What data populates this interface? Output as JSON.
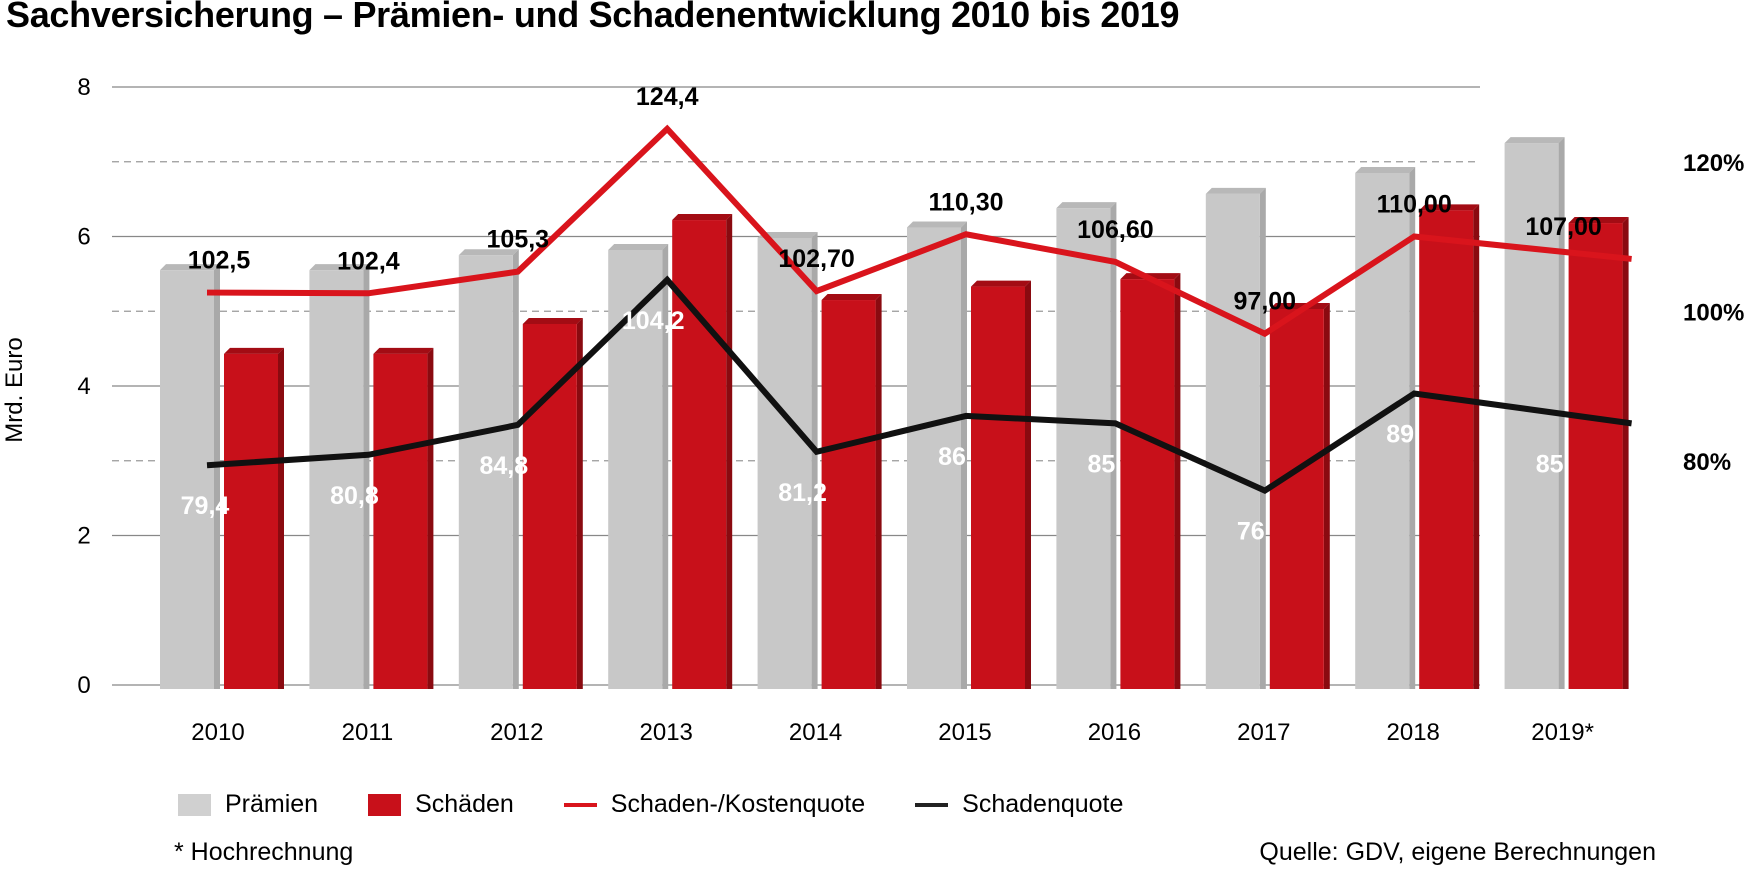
{
  "chart_data": {
    "type": "bar",
    "title": "Sachversicherung – Prämien- und Schadenentwicklung 2010 bis 2019",
    "ylabel": "Mrd. Euro",
    "ylim": [
      0,
      8
    ],
    "yticks": [
      "0",
      "2",
      "4",
      "6",
      "8"
    ],
    "y2lim": [
      50,
      130
    ],
    "y2ticks": [
      "80%",
      "100%",
      "120%"
    ],
    "categories": [
      "2010",
      "2011",
      "2012",
      "2013",
      "2014",
      "2015",
      "2016",
      "2017",
      "2018",
      "2019*"
    ],
    "series": [
      {
        "name": "Prämien",
        "type": "bar",
        "axis": "left",
        "color": "#c8c8c8",
        "values": [
          5.55,
          5.55,
          5.75,
          5.82,
          5.98,
          6.12,
          6.38,
          6.57,
          6.85,
          7.25
        ]
      },
      {
        "name": "Schäden",
        "type": "bar",
        "axis": "left",
        "color": "#c8101a",
        "values": [
          4.43,
          4.43,
          4.83,
          6.22,
          5.15,
          5.33,
          5.43,
          5.03,
          6.35,
          6.18
        ]
      },
      {
        "name": "Schaden-/Kostenquote",
        "type": "line",
        "axis": "right",
        "color": "#d9141c",
        "values": [
          102.5,
          102.4,
          105.3,
          124.4,
          102.7,
          110.3,
          106.6,
          97.0,
          110.0,
          107.0
        ],
        "labels": [
          "102,5",
          "102,4",
          "105,3",
          "124,4",
          "102,70",
          "110,30",
          "106,60",
          "97,00",
          "110,00",
          "107,00"
        ]
      },
      {
        "name": "Schadenquote",
        "type": "line",
        "axis": "right",
        "color": "#111111",
        "values": [
          79.4,
          80.8,
          84.8,
          104.2,
          81.2,
          86,
          85,
          76,
          89,
          85
        ],
        "labels": [
          "79,4",
          "80,8",
          "84,8",
          "104,2",
          "81,2",
          "86",
          "85",
          "76",
          "89",
          "85"
        ]
      }
    ],
    "grid": true,
    "legend": "bottom"
  },
  "footnote": "* Hochrechnung",
  "source": "Quelle: GDV, eigene Berechnungen"
}
